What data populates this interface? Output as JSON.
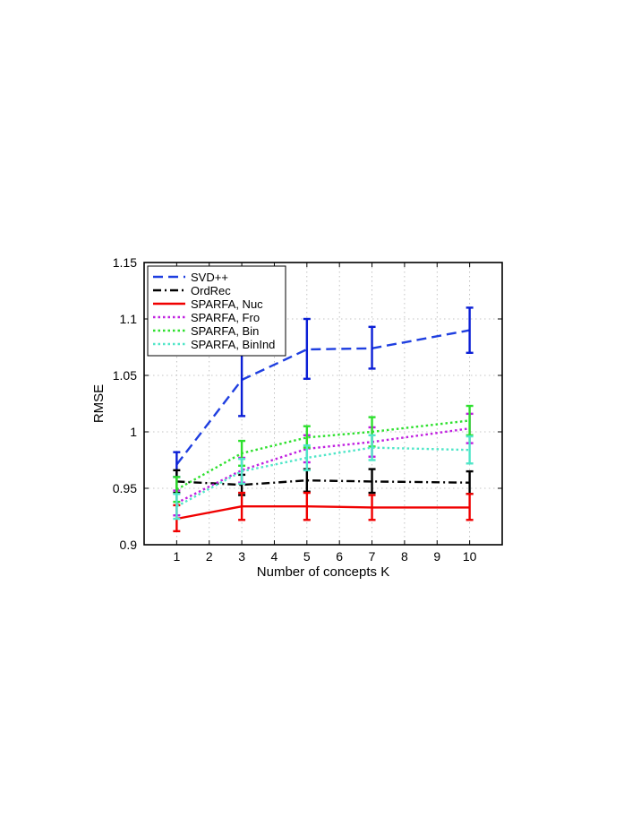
{
  "chart_data": {
    "type": "line",
    "xlabel": "Number of concepts K",
    "ylabel": "RMSE",
    "xlim": [
      0,
      11
    ],
    "ylim": [
      0.9,
      1.15
    ],
    "x_ticks": [
      "1",
      "2",
      "3",
      "4",
      "5",
      "6",
      "7",
      "8",
      "9",
      "10"
    ],
    "y_ticks": [
      "0.9",
      "0.95",
      "1",
      "1.05",
      "1.1",
      "1.15"
    ],
    "grid": true,
    "legend_position": "top-left",
    "x": [
      1,
      3,
      5,
      7,
      10
    ],
    "series": [
      {
        "name": "SVD++",
        "color": "#1f3fe0",
        "error_color": "#0b1fd6",
        "dash": "dashed",
        "values": [
          0.971,
          1.046,
          1.073,
          1.074,
          1.09
        ],
        "err_low": [
          0.96,
          1.014,
          1.047,
          1.056,
          1.07
        ],
        "err_high": [
          0.982,
          1.078,
          1.1,
          1.093,
          1.11
        ]
      },
      {
        "name": "OrdRec",
        "color": "#000000",
        "error_color": "#000000",
        "dash": "dashdot",
        "values": [
          0.956,
          0.953,
          0.957,
          0.956,
          0.955
        ],
        "err_low": [
          0.946,
          0.944,
          0.947,
          0.946,
          0.945
        ],
        "err_high": [
          0.966,
          0.962,
          0.967,
          0.967,
          0.965
        ]
      },
      {
        "name": "SPARFA, Nuc",
        "color": "#f00000",
        "error_color": "#f00000",
        "dash": "solid",
        "values": [
          0.923,
          0.934,
          0.934,
          0.933,
          0.933
        ],
        "err_low": [
          0.912,
          0.922,
          0.922,
          0.922,
          0.922
        ],
        "err_high": [
          0.935,
          0.946,
          0.946,
          0.944,
          0.945
        ]
      },
      {
        "name": "SPARFA, Fro",
        "color": "#c020e0",
        "error_color": "#c020e0",
        "dash": "dotted",
        "values": [
          0.937,
          0.966,
          0.985,
          0.991,
          1.003
        ],
        "err_low": [
          0.926,
          0.955,
          0.973,
          0.978,
          0.99
        ],
        "err_high": [
          0.948,
          0.977,
          0.997,
          1.004,
          1.016
        ]
      },
      {
        "name": "SPARFA, Bin",
        "color": "#2ee02e",
        "error_color": "#2ee02e",
        "dash": "dotted",
        "values": [
          0.949,
          0.981,
          0.995,
          1.0,
          1.01
        ],
        "err_low": [
          0.938,
          0.97,
          0.986,
          0.987,
          0.997
        ],
        "err_high": [
          0.96,
          0.992,
          1.005,
          1.013,
          1.023
        ]
      },
      {
        "name": "SPARFA, BinInd",
        "color": "#50e6c8",
        "error_color": "#50e6c8",
        "dash": "dotted",
        "values": [
          0.934,
          0.965,
          0.977,
          0.986,
          0.984
        ],
        "err_low": [
          0.923,
          0.954,
          0.966,
          0.975,
          0.972
        ],
        "err_high": [
          0.945,
          0.976,
          0.988,
          0.997,
          0.996
        ]
      }
    ]
  }
}
